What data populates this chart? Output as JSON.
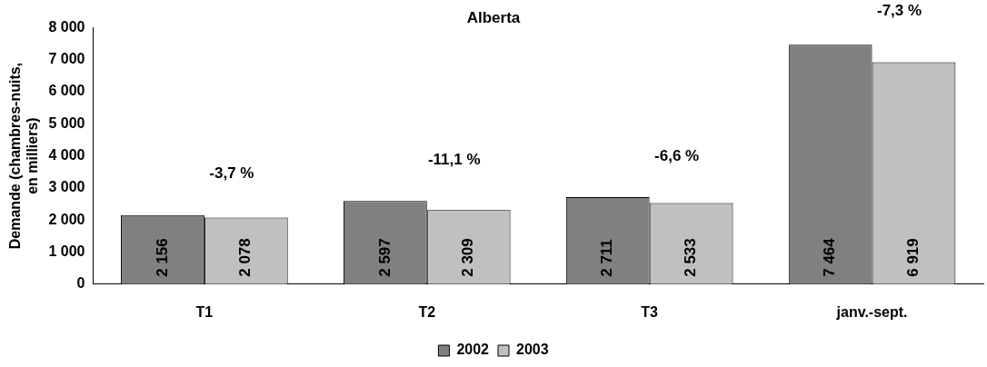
{
  "chart_data": {
    "type": "bar",
    "title": "Alberta",
    "ylabel": "Demande (chambres-nuits, en milliers)",
    "categories": [
      "T1",
      "T2",
      "T3",
      "janv.-sept."
    ],
    "series": [
      {
        "name": "2002",
        "color": "#808080",
        "values": [
          2156,
          2597,
          2711,
          7464
        ]
      },
      {
        "name": "2003",
        "color": "#c0c0c0",
        "values": [
          2078,
          2309,
          2533,
          6919
        ]
      }
    ],
    "ylim": [
      0,
      8000
    ],
    "yticks": [
      0,
      1000,
      2000,
      3000,
      4000,
      5000,
      6000,
      7000,
      8000
    ],
    "grid": false,
    "legend": "bottom",
    "data_labels": true,
    "annotations": [
      "-3,7 %",
      "-11,1 %",
      "-6,6 %",
      "-7,3 %"
    ]
  }
}
